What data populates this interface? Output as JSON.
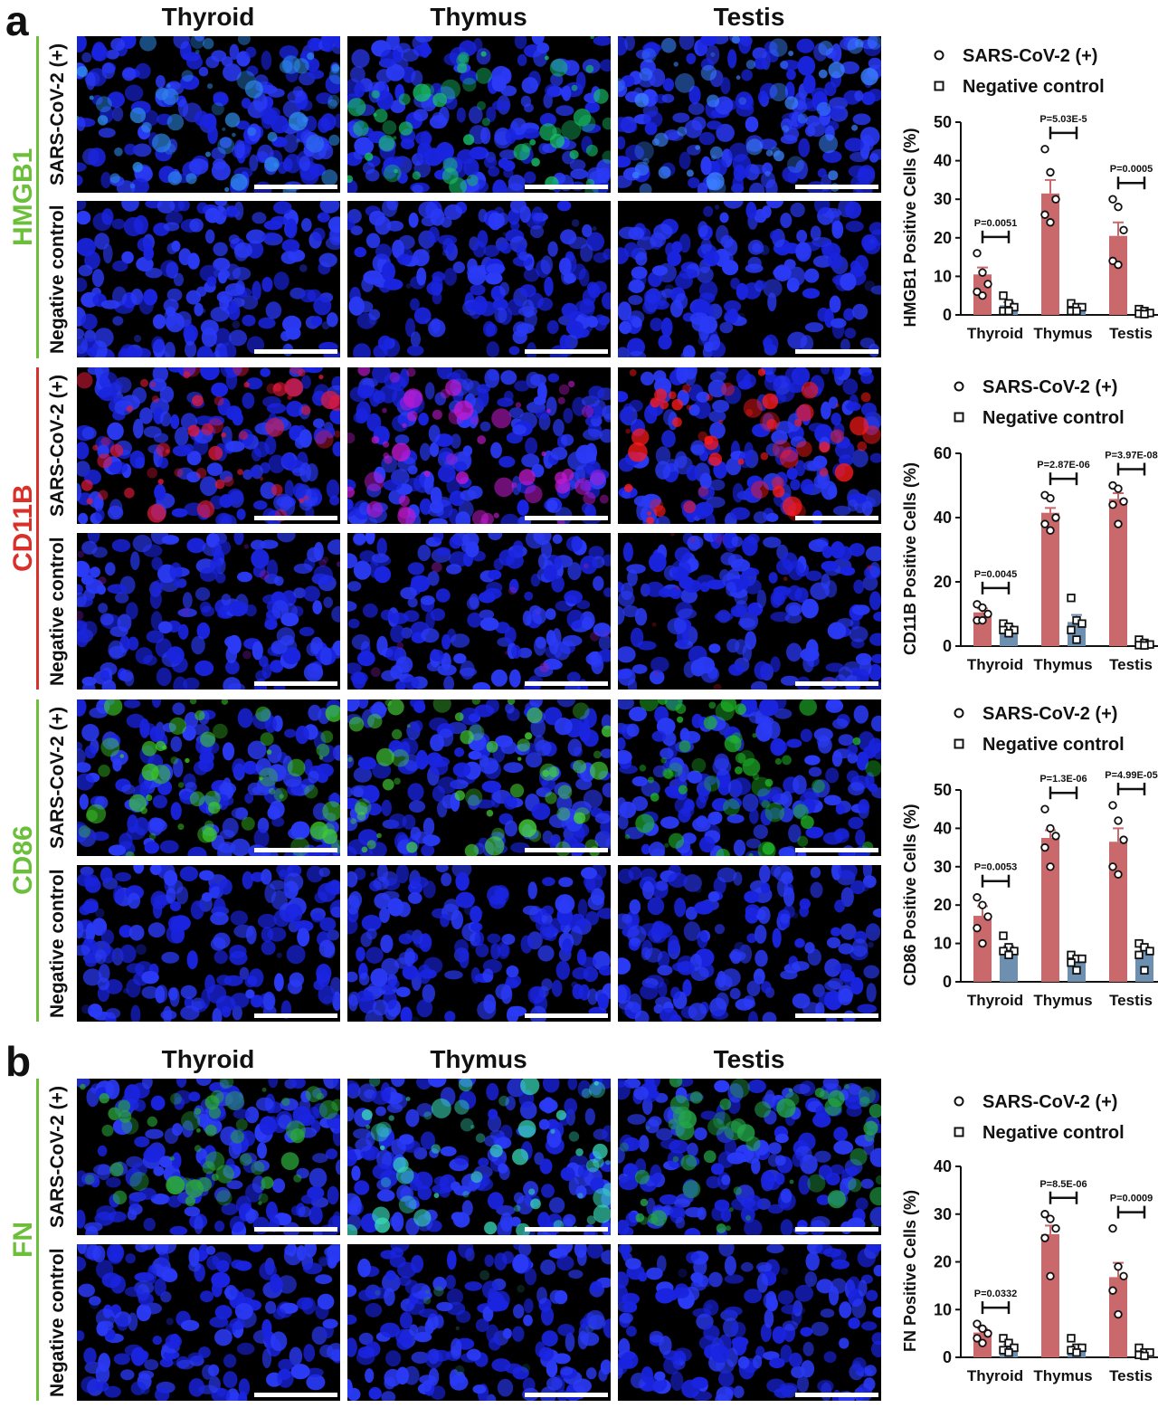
{
  "panels": {
    "a": {
      "letter": "a",
      "columns": [
        "Thyroid",
        "Thymus",
        "Testis"
      ],
      "markers": [
        {
          "name": "HMGB1",
          "color": "#6cbf3a",
          "rows": [
            "SARS-CoV-2 (+)",
            "Negative control"
          ]
        },
        {
          "name": "CD11B",
          "color": "#d9302a",
          "rows": [
            "SARS-CoV-2 (+)",
            "Negative control"
          ]
        },
        {
          "name": "CD86",
          "color": "#6cbf3a",
          "rows": [
            "SARS-CoV-2 (+)",
            "Negative control"
          ]
        }
      ]
    },
    "b": {
      "letter": "b",
      "columns": [
        "Thyroid",
        "Thymus",
        "Testis"
      ],
      "markers": [
        {
          "name": "FN",
          "color": "#6cbf3a",
          "rows": [
            "SARS-CoV-2 (+)",
            "Negative control"
          ]
        }
      ]
    }
  },
  "image_tints": {
    "HMGB1": {
      "pos": [
        "#2e8be8",
        "#18c26a",
        "#3a82ff"
      ],
      "neg": [
        "#2a3cf0",
        "#2a3cf0",
        "#2236e8"
      ]
    },
    "CD11B": {
      "pos": [
        "#e01a3a",
        "#c21ad0",
        "#ff1a1a"
      ],
      "neg": [
        "#7a1ab0",
        "#9a20b8",
        "#c0102a"
      ]
    },
    "CD86": {
      "pos": [
        "#3ccc2a",
        "#46d63a",
        "#20b82a"
      ],
      "neg": [
        "#1a2ad8",
        "#1a2cd8",
        "#1a28c8"
      ]
    },
    "FN": {
      "pos": [
        "#2aa83a",
        "#38d8b8",
        "#24a84a"
      ],
      "neg": [
        "#1a2ce0",
        "#2a7a6a",
        "#1a2ad8"
      ]
    }
  },
  "chart_data": [
    {
      "type": "bar",
      "categories": [
        "Thyroid",
        "Thymus",
        "Testis"
      ],
      "ylabel": "HMGB1 Positive Cells (%)",
      "ylim": [
        0,
        50
      ],
      "yticks": [
        0,
        10,
        20,
        30,
        40,
        50
      ],
      "legend": [
        "SARS-CoV-2 (+)",
        "Negative control"
      ],
      "legend_position": "top",
      "series": [
        {
          "name": "SARS-CoV-2 (+)",
          "color": "#c9696b",
          "values": [
            10.5,
            31.5,
            20.5
          ],
          "errors": [
            1.8,
            3.5,
            3.5
          ],
          "points": [
            [
              16,
              11,
              8,
              6,
              5
            ],
            [
              43,
              37,
              30,
              26,
              24
            ],
            [
              30,
              28,
              22,
              14,
              13
            ]
          ]
        },
        {
          "name": "Negative control",
          "color": "#6d8fb0",
          "values": [
            2.5,
            1.8,
            0.8
          ],
          "errors": [
            0.8,
            0.5,
            0.3
          ],
          "points": [
            [
              5,
              3,
              2,
              1,
              1
            ],
            [
              3,
              2,
              2,
              1,
              1
            ],
            [
              1.5,
              1,
              0.5,
              0.3,
              0.2
            ]
          ]
        }
      ],
      "pvalues": [
        "P=0.0051",
        "P=5.03E-5",
        "P=0.0005"
      ]
    },
    {
      "type": "bar",
      "categories": [
        "Thyroid",
        "Thymus",
        "Testis"
      ],
      "ylabel": "CD11B Positive Cells (%)",
      "ylim": [
        0,
        60
      ],
      "yticks": [
        0,
        20,
        40,
        60
      ],
      "legend": [
        "SARS-CoV-2 (+)",
        "Negative control"
      ],
      "legend_position": "top",
      "series": [
        {
          "name": "SARS-CoV-2 (+)",
          "color": "#c9696b",
          "values": [
            10.5,
            41.5,
            45.8
          ],
          "errors": [
            1.2,
            1.5,
            1.8
          ],
          "points": [
            [
              13,
              12,
              10,
              8,
              8
            ],
            [
              47,
              46,
              40,
              38,
              36
            ],
            [
              50,
              49,
              45,
              44,
              38
            ]
          ]
        },
        {
          "name": "Negative control",
          "color": "#6d8fb0",
          "values": [
            5.5,
            7.5,
            0.8
          ],
          "errors": [
            0.7,
            2.2,
            0.3
          ],
          "points": [
            [
              7,
              6,
              5,
              5,
              4
            ],
            [
              15,
              8,
              7,
              5,
              2
            ],
            [
              2,
              1,
              0.5,
              0.3,
              0.2
            ]
          ]
        }
      ],
      "pvalues": [
        "P=0.0045",
        "P=2.87E-06",
        "P=3.97E-08"
      ]
    },
    {
      "type": "bar",
      "categories": [
        "Thyroid",
        "Thymus",
        "Testis"
      ],
      "ylabel": "CD86 Positive Cells (%)",
      "ylim": [
        0,
        50
      ],
      "yticks": [
        0,
        10,
        20,
        30,
        40,
        50
      ],
      "legend": [
        "SARS-CoV-2 (+)",
        "Negative control"
      ],
      "legend_position": "top",
      "series": [
        {
          "name": "SARS-CoV-2 (+)",
          "color": "#c9696b",
          "values": [
            17.2,
            37.5,
            36.5
          ],
          "errors": [
            2.5,
            2.0,
            3.5
          ],
          "points": [
            [
              22,
              20,
              17,
              14,
              10
            ],
            [
              45,
              40,
              38,
              35,
              30
            ],
            [
              46,
              42,
              37,
              30,
              28
            ]
          ]
        },
        {
          "name": "Negative control",
          "color": "#6d8fb0",
          "values": [
            8.5,
            5.5,
            7.8
          ],
          "errors": [
            0.8,
            0.8,
            1.2
          ],
          "points": [
            [
              12,
              9,
              8,
              8,
              7
            ],
            [
              7,
              6,
              6,
              5,
              3
            ],
            [
              10,
              9,
              8,
              7,
              3
            ]
          ]
        }
      ],
      "pvalues": [
        "P=0.0053",
        "P=1.3E-06",
        "P=4.99E-05"
      ]
    },
    {
      "type": "bar",
      "categories": [
        "Thyroid",
        "Thymus",
        "Testis"
      ],
      "ylabel": "FN Positive Cells (%)",
      "ylim": [
        0,
        40
      ],
      "yticks": [
        0,
        10,
        20,
        30,
        40
      ],
      "legend": [
        "SARS-CoV-2 (+)",
        "Negative control"
      ],
      "legend_position": "top",
      "series": [
        {
          "name": "SARS-CoV-2 (+)",
          "color": "#c9696b",
          "values": [
            5.2,
            25.8,
            16.8
          ],
          "errors": [
            0.8,
            1.8,
            3.0
          ],
          "points": [
            [
              7,
              6,
              5,
              4,
              3
            ],
            [
              30,
              29,
              27,
              25,
              17
            ],
            [
              27,
              19,
              17,
              14,
              9
            ]
          ]
        },
        {
          "name": "Negative control",
          "color": "#6d8fb0",
          "values": [
            2.2,
            1.8,
            1.0
          ],
          "errors": [
            0.5,
            0.5,
            0.3
          ],
          "points": [
            [
              4,
              3,
              2,
              1.5,
              1
            ],
            [
              4,
              2,
              2,
              1.5,
              1
            ],
            [
              2,
              1,
              1,
              0.5,
              0.3
            ]
          ]
        }
      ],
      "pvalues": [
        "P=0.0332",
        "P=8.5E-06",
        "P=0.0009"
      ]
    }
  ]
}
